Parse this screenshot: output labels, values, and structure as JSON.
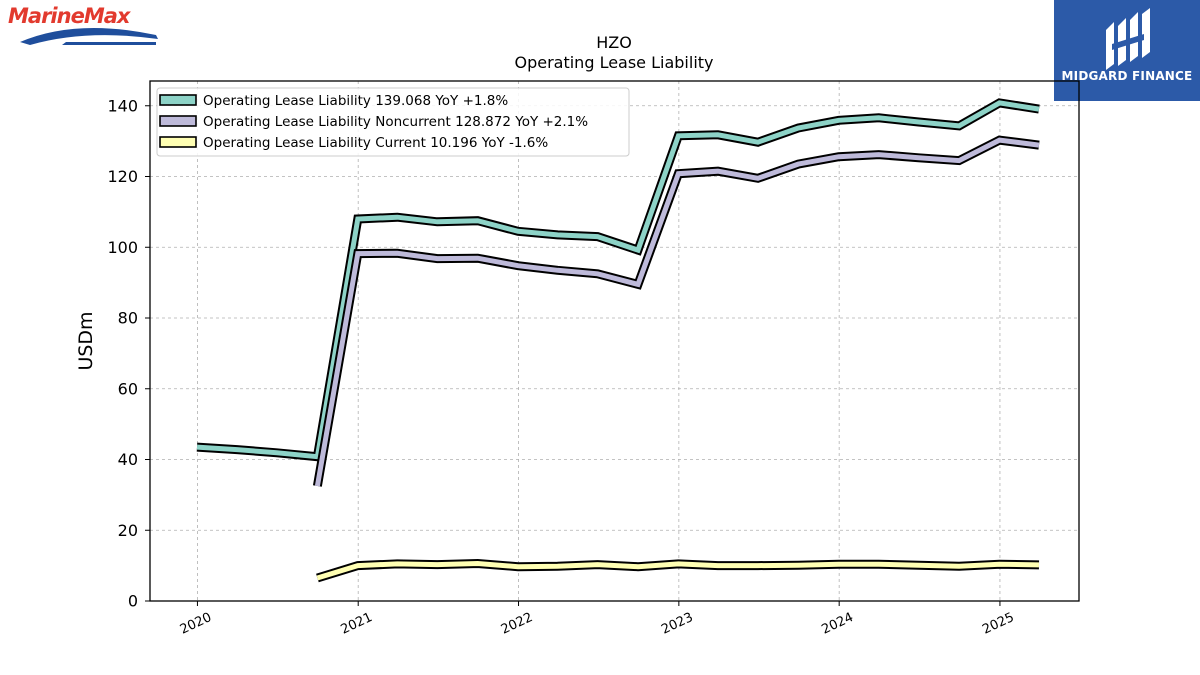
{
  "branding": {
    "company_logo_text": "MarineMax",
    "company_logo_color": "#e23a2e",
    "company_logo_wave_color": "#1f4e9c",
    "finance_badge_text": "MIDGARD FINANCE",
    "finance_badge_color": "#2c5aa8"
  },
  "chart_data": {
    "type": "line",
    "title": "HZO",
    "subtitle": "Operating Lease Liability",
    "ylabel": "USDm",
    "xlabel": "",
    "ylim": [
      0,
      147
    ],
    "xlim": [
      "2019-09-15",
      "2025-06-30"
    ],
    "yticks": [
      0,
      20,
      40,
      60,
      80,
      100,
      120,
      140
    ],
    "xticks": [
      "2020",
      "2021",
      "2022",
      "2023",
      "2024",
      "2025"
    ],
    "grid": true,
    "legend_position": "top-left",
    "series": [
      {
        "name": "Operating Lease Liability",
        "legend_label": "Operating Lease Liability  139.068 YoY +1.8%",
        "color": "#8dd3c7",
        "points": [
          [
            "2019-12-31",
            43.5
          ],
          [
            "2020-03-31",
            42.8
          ],
          [
            "2020-06-30",
            41.9
          ],
          [
            "2020-09-30",
            40.8
          ],
          [
            "2020-12-31",
            108.0
          ],
          [
            "2021-03-31",
            108.5
          ],
          [
            "2021-06-30",
            107.2
          ],
          [
            "2021-09-30",
            107.5
          ],
          [
            "2021-12-31",
            104.5
          ],
          [
            "2022-03-31",
            103.5
          ],
          [
            "2022-06-30",
            103.0
          ],
          [
            "2022-09-30",
            99.2
          ],
          [
            "2022-12-31",
            131.5
          ],
          [
            "2023-03-31",
            131.8
          ],
          [
            "2023-06-30",
            129.7
          ],
          [
            "2023-09-30",
            133.7
          ],
          [
            "2023-12-31",
            135.9
          ],
          [
            "2024-03-31",
            136.6
          ],
          [
            "2024-06-30",
            135.4
          ],
          [
            "2024-09-30",
            134.3
          ],
          [
            "2024-12-31",
            140.8
          ],
          [
            "2025-03-31",
            139.068
          ]
        ]
      },
      {
        "name": "Operating Lease Liability Noncurrent",
        "legend_label": "Operating Lease Liability Noncurrent  128.872 YoY +2.1%",
        "color": "#bebada",
        "points": [
          [
            "2020-09-30",
            32.5
          ],
          [
            "2020-12-31",
            98.2
          ],
          [
            "2021-03-31",
            98.3
          ],
          [
            "2021-06-30",
            96.8
          ],
          [
            "2021-09-30",
            96.9
          ],
          [
            "2021-12-31",
            94.8
          ],
          [
            "2022-03-31",
            93.5
          ],
          [
            "2022-06-30",
            92.5
          ],
          [
            "2022-09-30",
            89.5
          ],
          [
            "2022-12-31",
            120.8
          ],
          [
            "2023-03-31",
            121.5
          ],
          [
            "2023-06-30",
            119.5
          ],
          [
            "2023-09-30",
            123.5
          ],
          [
            "2023-12-31",
            125.6
          ],
          [
            "2024-03-31",
            126.2
          ],
          [
            "2024-06-30",
            125.3
          ],
          [
            "2024-09-30",
            124.5
          ],
          [
            "2024-12-31",
            130.3
          ],
          [
            "2025-03-31",
            128.872
          ]
        ]
      },
      {
        "name": "Operating Lease Liability Current",
        "legend_label": "Operating Lease Liability Current  10.196 YoY -1.6%",
        "color": "#ffffb3",
        "points": [
          [
            "2020-09-30",
            6.5
          ],
          [
            "2020-12-31",
            10.0
          ],
          [
            "2021-03-31",
            10.5
          ],
          [
            "2021-06-30",
            10.3
          ],
          [
            "2021-09-30",
            10.6
          ],
          [
            "2021-12-31",
            9.7
          ],
          [
            "2022-03-31",
            9.8
          ],
          [
            "2022-06-30",
            10.3
          ],
          [
            "2022-09-30",
            9.7
          ],
          [
            "2022-12-31",
            10.5
          ],
          [
            "2023-03-31",
            10.0
          ],
          [
            "2023-06-30",
            10.0
          ],
          [
            "2023-09-30",
            10.1
          ],
          [
            "2023-12-31",
            10.4
          ],
          [
            "2024-03-31",
            10.4
          ],
          [
            "2024-06-30",
            10.1
          ],
          [
            "2024-09-30",
            9.8
          ],
          [
            "2024-12-31",
            10.4
          ],
          [
            "2025-03-31",
            10.196
          ]
        ]
      }
    ]
  }
}
